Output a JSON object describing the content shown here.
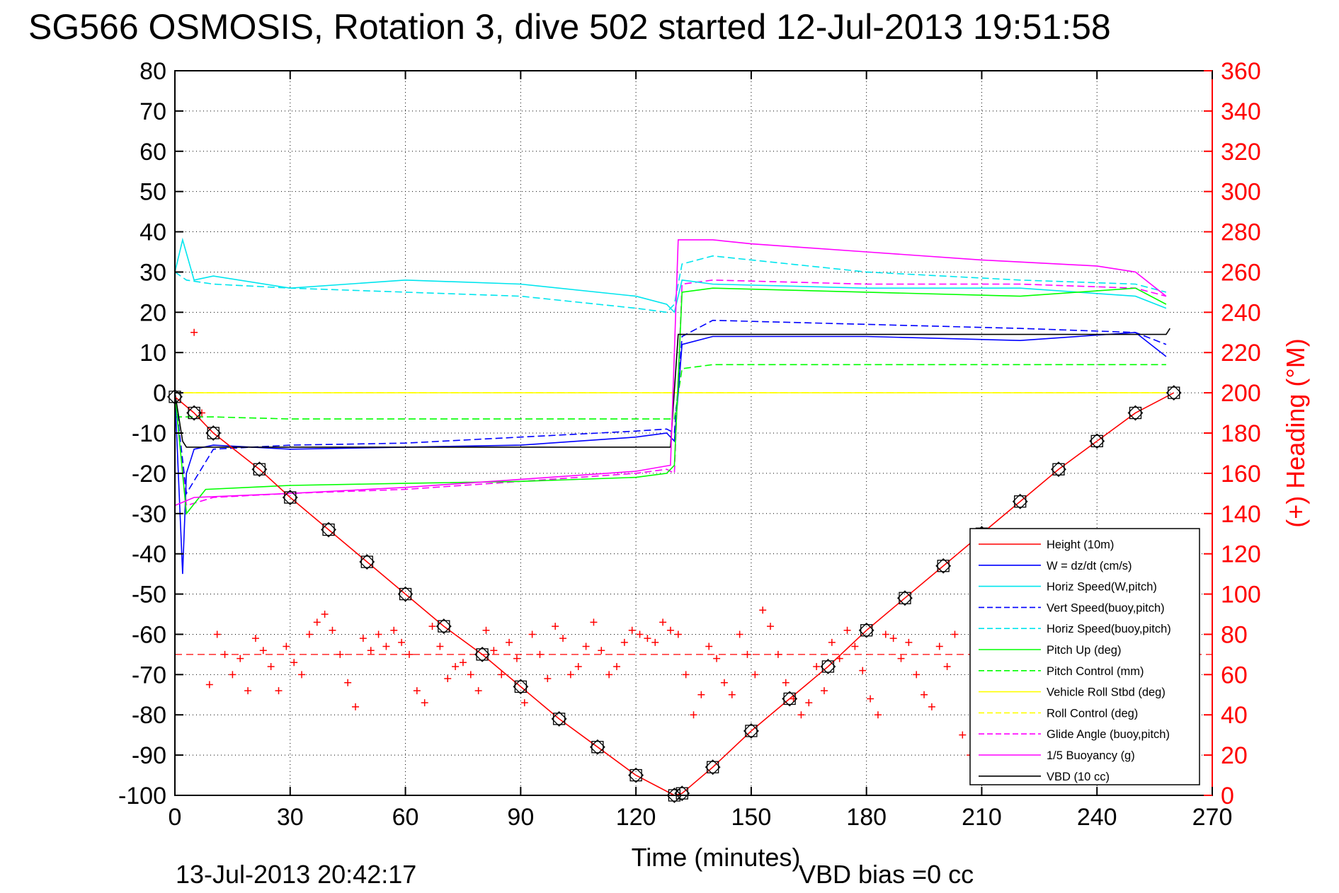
{
  "title": "SG566 OSMOSIS, Rotation 3, dive 502 started 12-Jul-2013 19:51:58",
  "footer": {
    "timestamp": "13-Jul-2013 20:42:17",
    "vbd_bias": "VBD bias =0 cc"
  },
  "chart_data": {
    "type": "line",
    "title": "SG566 OSMOSIS, Rotation 3, dive 502 started 12-Jul-2013 19:51:58",
    "xlabel": "Time (minutes)",
    "ylabel": "",
    "y2label": "(+) Heading (°M)",
    "xlim": [
      0,
      270
    ],
    "ylim": [
      -100,
      80
    ],
    "y2lim": [
      0,
      360
    ],
    "xticks": [
      0,
      30,
      60,
      90,
      120,
      150,
      180,
      210,
      240,
      270
    ],
    "yticks": [
      80,
      70,
      60,
      50,
      40,
      30,
      20,
      10,
      0,
      -10,
      -20,
      -30,
      -40,
      -50,
      -60,
      -70,
      -80,
      -90,
      -100
    ],
    "y2ticks": [
      360,
      340,
      320,
      300,
      280,
      260,
      240,
      220,
      200,
      180,
      160,
      140,
      120,
      100,
      80,
      60,
      40,
      20,
      0
    ],
    "grid": true,
    "legend_position": "bottom-right",
    "series": [
      {
        "name": "Height (10m)",
        "color": "#ff0000",
        "style": "solid",
        "x": [
          0,
          5,
          10,
          22,
          30,
          40,
          50,
          60,
          70,
          80,
          90,
          100,
          110,
          120,
          130,
          132,
          140,
          150,
          160,
          170,
          180,
          190,
          200,
          210,
          220,
          230,
          240,
          250,
          260
        ],
        "y": [
          -1,
          -5,
          -10,
          -19,
          -26,
          -34,
          -42,
          -50,
          -58,
          -65,
          -73,
          -81,
          -88,
          -95,
          -100,
          -99.5,
          -93,
          -84,
          -76,
          -68,
          -59,
          -51,
          -43,
          -35,
          -27,
          -19,
          -12,
          -5,
          0
        ]
      },
      {
        "name": "W = dz/dt (cm/s)",
        "color": "#0000ff",
        "style": "solid",
        "x": [
          0,
          2,
          3,
          5,
          10,
          30,
          60,
          90,
          120,
          128,
          130,
          132,
          140,
          180,
          220,
          250,
          258
        ],
        "y": [
          0,
          -45,
          -20,
          -14,
          -13,
          -14,
          -13.5,
          -13,
          -11,
          -10,
          -12,
          12,
          14,
          14,
          13,
          15,
          9
        ]
      },
      {
        "name": "Horiz Speed(W,pitch)",
        "color": "#00e5ee",
        "style": "solid",
        "x": [
          0,
          2,
          5,
          10,
          30,
          60,
          90,
          120,
          128,
          130,
          132,
          140,
          180,
          220,
          250,
          258
        ],
        "y": [
          30,
          38,
          28,
          29,
          26,
          28,
          27,
          24,
          22,
          20,
          28,
          27,
          26,
          26,
          24,
          21
        ]
      },
      {
        "name": "Vert Speed(buoy,pitch)",
        "color": "#0000ff",
        "style": "dashed",
        "x": [
          0,
          3,
          10,
          30,
          60,
          90,
          120,
          128,
          130,
          132,
          140,
          180,
          220,
          250,
          258
        ],
        "y": [
          0,
          -25,
          -14,
          -13,
          -12.5,
          -11,
          -9.5,
          -9,
          -10,
          14,
          18,
          17,
          16,
          15,
          12
        ]
      },
      {
        "name": "Horiz Speed(buoy,pitch)",
        "color": "#00e5ee",
        "style": "dashed",
        "x": [
          0,
          3,
          10,
          30,
          60,
          90,
          120,
          128,
          130,
          132,
          140,
          180,
          220,
          250,
          258
        ],
        "y": [
          30,
          28,
          27,
          26,
          25,
          24,
          21,
          20,
          22,
          32,
          34,
          30,
          28,
          27,
          25
        ]
      },
      {
        "name": "Pitch Up (deg)",
        "color": "#00ff00",
        "style": "solid",
        "x": [
          0,
          3,
          8,
          30,
          60,
          90,
          120,
          128,
          130,
          132,
          140,
          180,
          220,
          250,
          258
        ],
        "y": [
          0,
          -30,
          -24,
          -23,
          -22.5,
          -22,
          -21,
          -20,
          -18,
          25,
          26,
          25,
          24,
          26,
          22
        ]
      },
      {
        "name": "Pitch Control (mm)",
        "color": "#00ff00",
        "style": "dashed",
        "x": [
          0,
          10,
          30,
          60,
          90,
          120,
          130,
          132,
          140,
          180,
          220,
          258
        ],
        "y": [
          -6,
          -6,
          -6.5,
          -6.5,
          -6.5,
          -6.5,
          -6.5,
          6,
          7,
          7,
          7,
          7
        ]
      },
      {
        "name": "Vehicle Roll Stbd (deg)",
        "color": "#ffff00",
        "style": "solid",
        "x": [
          0,
          3,
          10,
          30,
          60,
          90,
          120,
          130,
          132,
          140,
          180,
          220,
          258
        ],
        "y": [
          0,
          0,
          0,
          0,
          0,
          0,
          0,
          0,
          0,
          0,
          0,
          0,
          0
        ]
      },
      {
        "name": "Roll Control (deg)",
        "color": "#ffff00",
        "style": "dashed",
        "x": [
          0,
          3,
          130,
          132,
          258
        ],
        "y": [
          0,
          0,
          0,
          0,
          0
        ]
      },
      {
        "name": "Glide Angle (buoy,pitch)",
        "color": "#ff00ff",
        "style": "dashed",
        "x": [
          0,
          3,
          10,
          30,
          60,
          90,
          120,
          128,
          130,
          132,
          140,
          180,
          220,
          250,
          258
        ],
        "y": [
          0,
          -28,
          -26,
          -25,
          -24,
          -22,
          -20,
          -19,
          -20,
          27,
          28,
          27,
          27,
          26,
          24
        ]
      },
      {
        "name": "1/5 Buoyancy (g)",
        "color": "#ff00ff",
        "style": "solid",
        "x": [
          0,
          5,
          30,
          60,
          90,
          120,
          129,
          131,
          140,
          150,
          180,
          210,
          240,
          250,
          258
        ],
        "y": [
          -28,
          -26,
          -25,
          -23.5,
          -21.5,
          -19.5,
          -18,
          38,
          38,
          37,
          35,
          33,
          31.5,
          30,
          24
        ]
      },
      {
        "name": "VBD (10 cc)",
        "color": "#000000",
        "style": "solid",
        "x": [
          0,
          2,
          3,
          30,
          129,
          131,
          258,
          259
        ],
        "y": [
          0,
          -12,
          -13.5,
          -13.5,
          -13.5,
          14.5,
          14.5,
          16
        ]
      }
    ],
    "heading_series": {
      "axis": "right",
      "color": "#ff0000",
      "marker": "+",
      "x": [
        5,
        7,
        9,
        11,
        13,
        15,
        17,
        19,
        21,
        23,
        25,
        27,
        29,
        31,
        33,
        35,
        37,
        39,
        41,
        43,
        45,
        47,
        49,
        51,
        53,
        55,
        57,
        59,
        61,
        63,
        65,
        67,
        69,
        71,
        73,
        75,
        77,
        79,
        81,
        83,
        85,
        87,
        89,
        91,
        93,
        95,
        97,
        99,
        101,
        103,
        105,
        107,
        109,
        111,
        113,
        115,
        117,
        119,
        121,
        123,
        125,
        127,
        129,
        131,
        133,
        135,
        137,
        139,
        141,
        143,
        145,
        147,
        149,
        151,
        153,
        155,
        157,
        159,
        161,
        163,
        165,
        167,
        169,
        171,
        173,
        175,
        177,
        179,
        181,
        183,
        185,
        187,
        189,
        191,
        193,
        195,
        197,
        199,
        201,
        203,
        205,
        207,
        209
      ],
      "y": [
        230,
        190,
        55,
        80,
        70,
        60,
        68,
        52,
        78,
        72,
        64,
        52,
        74,
        66,
        60,
        80,
        86,
        90,
        82,
        70,
        56,
        44,
        78,
        72,
        80,
        74,
        82,
        76,
        70,
        52,
        46,
        84,
        74,
        58,
        64,
        66,
        60,
        52,
        82,
        72,
        60,
        76,
        68,
        46,
        80,
        70,
        58,
        84,
        78,
        60,
        64,
        74,
        86,
        72,
        60,
        64,
        76,
        82,
        80,
        78,
        76,
        86,
        82,
        80,
        60,
        40,
        50,
        74,
        68,
        56,
        50,
        80,
        70,
        60,
        92,
        84,
        70,
        56,
        48,
        40,
        46,
        64,
        52,
        76,
        68,
        82,
        74,
        62,
        48,
        40,
        80,
        78,
        68,
        76,
        60,
        50,
        44,
        74,
        64,
        80,
        30,
        20,
        10
      ],
      "reference_heading": 70
    }
  }
}
